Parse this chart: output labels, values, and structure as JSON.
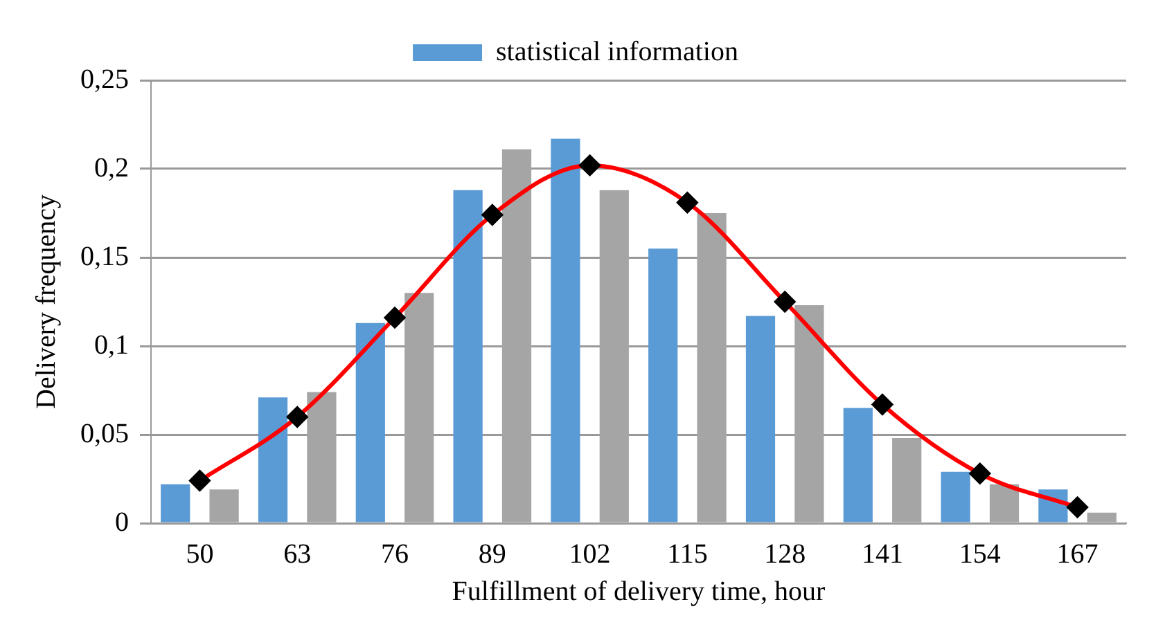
{
  "chart_data": {
    "type": "bar",
    "xlabel": "Fulfillment of delivery time, hour",
    "ylabel": "Delivery frequency",
    "categories": [
      "50",
      "63",
      "76",
      "89",
      "102",
      "115",
      "128",
      "141",
      "154",
      "167"
    ],
    "series": [
      {
        "name": "statistical information",
        "color": "#5b9bd5",
        "values": [
          0.022,
          0.071,
          0.113,
          0.188,
          0.217,
          0.155,
          0.117,
          0.065,
          0.029,
          0.019
        ]
      },
      {
        "color": "#a5a5a5",
        "values": [
          0.019,
          0.074,
          0.13,
          0.211,
          0.188,
          0.175,
          0.123,
          0.048,
          0.022,
          0.006
        ]
      },
      {
        "type": "line",
        "color": "#ff0000",
        "marker": "diamond",
        "values": [
          0.024,
          0.06,
          0.116,
          0.174,
          0.202,
          0.181,
          0.125,
          0.067,
          0.028,
          0.009
        ]
      }
    ],
    "ylim": [
      0,
      0.25
    ],
    "yticks": [
      0,
      {
        "value": 0.05,
        "label": "0,05"
      },
      {
        "value": 0.1,
        "label": "0,1"
      },
      {
        "value": 0.15,
        "label": "0,15"
      },
      {
        "value": 0.2,
        "label": "0,2"
      },
      {
        "value": 0.25,
        "label": "0,25"
      }
    ],
    "grid": "y",
    "legend": "top"
  }
}
